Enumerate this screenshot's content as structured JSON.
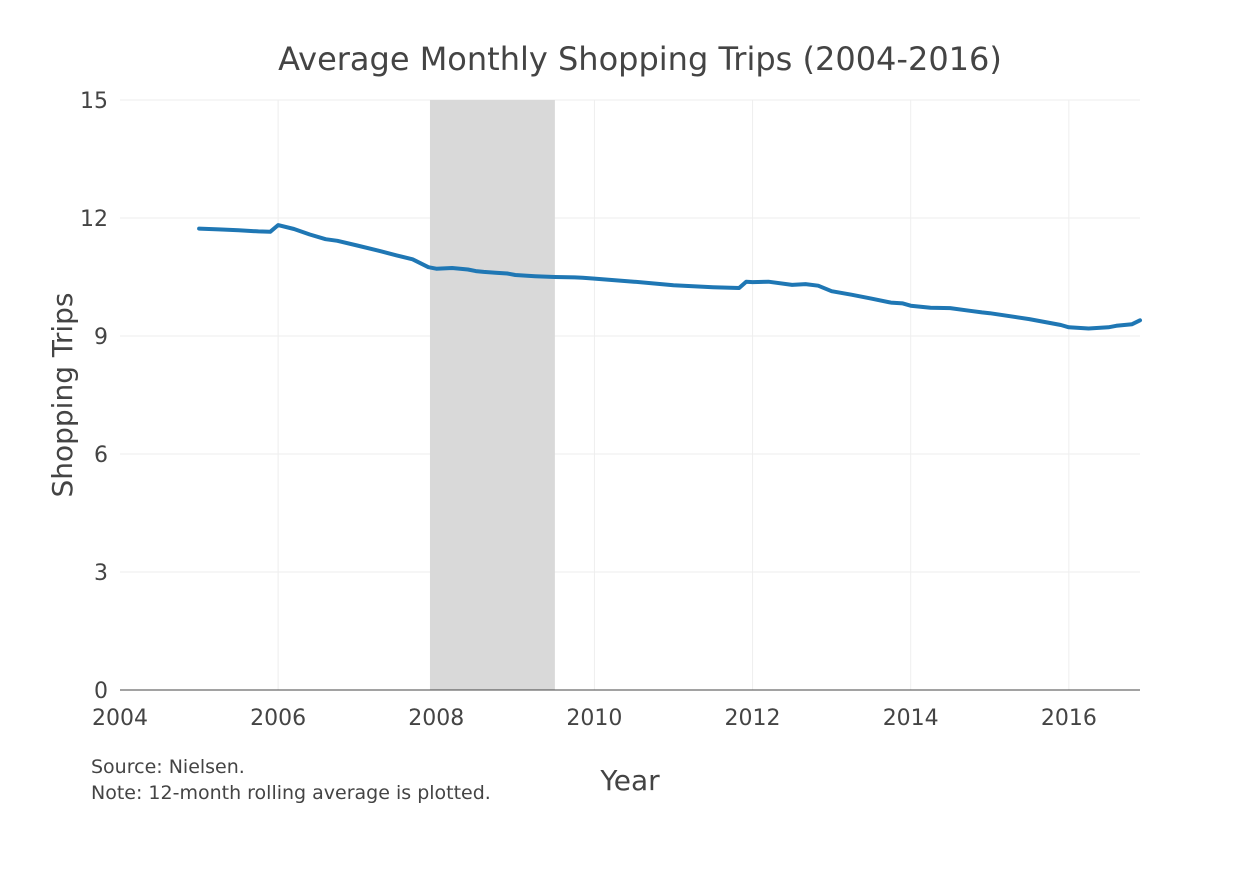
{
  "chart_data": {
    "type": "line",
    "title": "Average Monthly Shopping Trips (2004-2016)",
    "xlabel": "Year",
    "ylabel": "Shopping Trips",
    "xlim": [
      2004,
      2016.9
    ],
    "ylim": [
      0,
      15
    ],
    "x_ticks": [
      "2004",
      "2006",
      "2008",
      "2010",
      "2012",
      "2014",
      "2016"
    ],
    "y_ticks": [
      "0",
      "3",
      "6",
      "9",
      "12",
      "15"
    ],
    "grid": true,
    "shaded_region": {
      "x_start": 2007.92,
      "x_end": 2009.5,
      "color": "#d9d9d9"
    },
    "series": [
      {
        "color": "#1f77b4",
        "x": [
          2005.0,
          2005.25,
          2005.5,
          2005.75,
          2005.9,
          2006.0,
          2006.2,
          2006.4,
          2006.6,
          2006.75,
          2007.0,
          2007.25,
          2007.5,
          2007.7,
          2007.9,
          2008.0,
          2008.2,
          2008.4,
          2008.5,
          2008.6,
          2008.75,
          2008.9,
          2009.0,
          2009.25,
          2009.5,
          2009.75,
          2009.85,
          2010.0,
          2010.5,
          2011.0,
          2011.5,
          2011.83,
          2011.92,
          2012.0,
          2012.2,
          2012.5,
          2012.67,
          2012.83,
          2013.0,
          2013.25,
          2013.5,
          2013.75,
          2013.9,
          2014.0,
          2014.25,
          2014.5,
          2014.75,
          2014.9,
          2015.0,
          2015.5,
          2015.9,
          2016.0,
          2016.25,
          2016.5,
          2016.6,
          2016.8,
          2016.9
        ],
        "y": [
          11.73,
          11.71,
          11.69,
          11.66,
          11.65,
          11.82,
          11.72,
          11.58,
          11.46,
          11.42,
          11.3,
          11.18,
          11.05,
          10.95,
          10.75,
          10.71,
          10.73,
          10.69,
          10.65,
          10.63,
          10.61,
          10.59,
          10.55,
          10.52,
          10.5,
          10.49,
          10.48,
          10.46,
          10.38,
          10.29,
          10.24,
          10.22,
          10.38,
          10.37,
          10.38,
          10.3,
          10.32,
          10.28,
          10.14,
          10.05,
          9.95,
          9.85,
          9.83,
          9.77,
          9.72,
          9.71,
          9.64,
          9.6,
          9.58,
          9.43,
          9.28,
          9.22,
          9.19,
          9.22,
          9.26,
          9.3,
          9.4
        ]
      }
    ]
  },
  "notes": {
    "source": "Source: Nielsen.",
    "note": "Note: 12-month rolling average is plotted."
  }
}
